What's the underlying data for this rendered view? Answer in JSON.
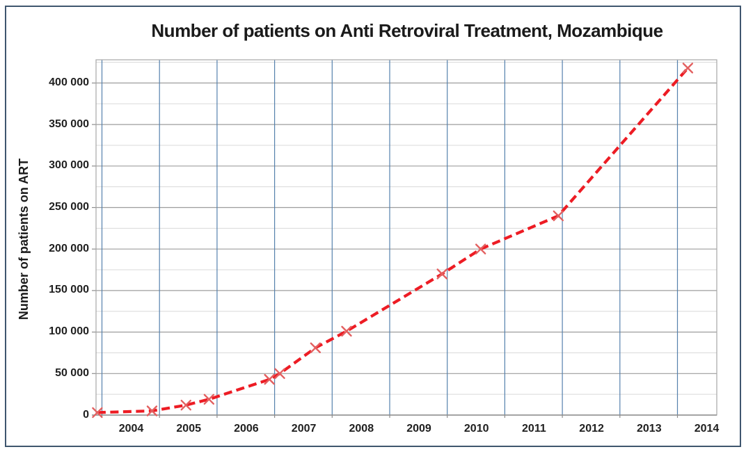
{
  "window": {
    "background_color": "#ffffff",
    "border_color": "#3f566e"
  },
  "chart_data": {
    "type": "line",
    "title": "Number of patients on Anti Retroviral Treatment, Mozambique",
    "xlabel": "",
    "ylabel": "Number of patients on ART",
    "legend": "none",
    "xlim": [
      2003.9,
      2014.68
    ],
    "ylim": [
      0,
      427000
    ],
    "x_tick_labels": [
      "2004",
      "2005",
      "2006",
      "2007",
      "2008",
      "2009",
      "2010",
      "2011",
      "2012",
      "2013",
      "2014"
    ],
    "y_tick_values": [
      0,
      50000,
      100000,
      150000,
      200000,
      250000,
      300000,
      350000,
      400000
    ],
    "y_tick_labels": [
      "0",
      "50 000",
      "100 000",
      "150 000",
      "200 000",
      "250 000",
      "300 000",
      "350 000",
      "400 000"
    ],
    "y_major_step": 50000,
    "y_minor_step": 25000,
    "grid": {
      "vertical_year_lines": true,
      "vertical_color": "#5581ad",
      "major_horizontal_color": "#9d9d9d",
      "minor_horizontal_color": "#d9d9d9",
      "plot_border_color": "#a6a6a6",
      "axis_line_color": "#8c8c8c"
    },
    "series": [
      {
        "name": "Patients on ART",
        "line_style": "dashed",
        "line_color": "#ed1c24",
        "marker": "x",
        "marker_color": "#e35f5f",
        "x": [
          2003.92,
          2004.87,
          2005.46,
          2005.86,
          2006.91,
          2007.09,
          2007.71,
          2008.25,
          2009.91,
          2010.58,
          2011.93,
          2014.18
        ],
        "values": [
          3000,
          5000,
          12000,
          19000,
          43000,
          50000,
          81000,
          101000,
          170000,
          200000,
          240000,
          418000
        ]
      }
    ]
  }
}
